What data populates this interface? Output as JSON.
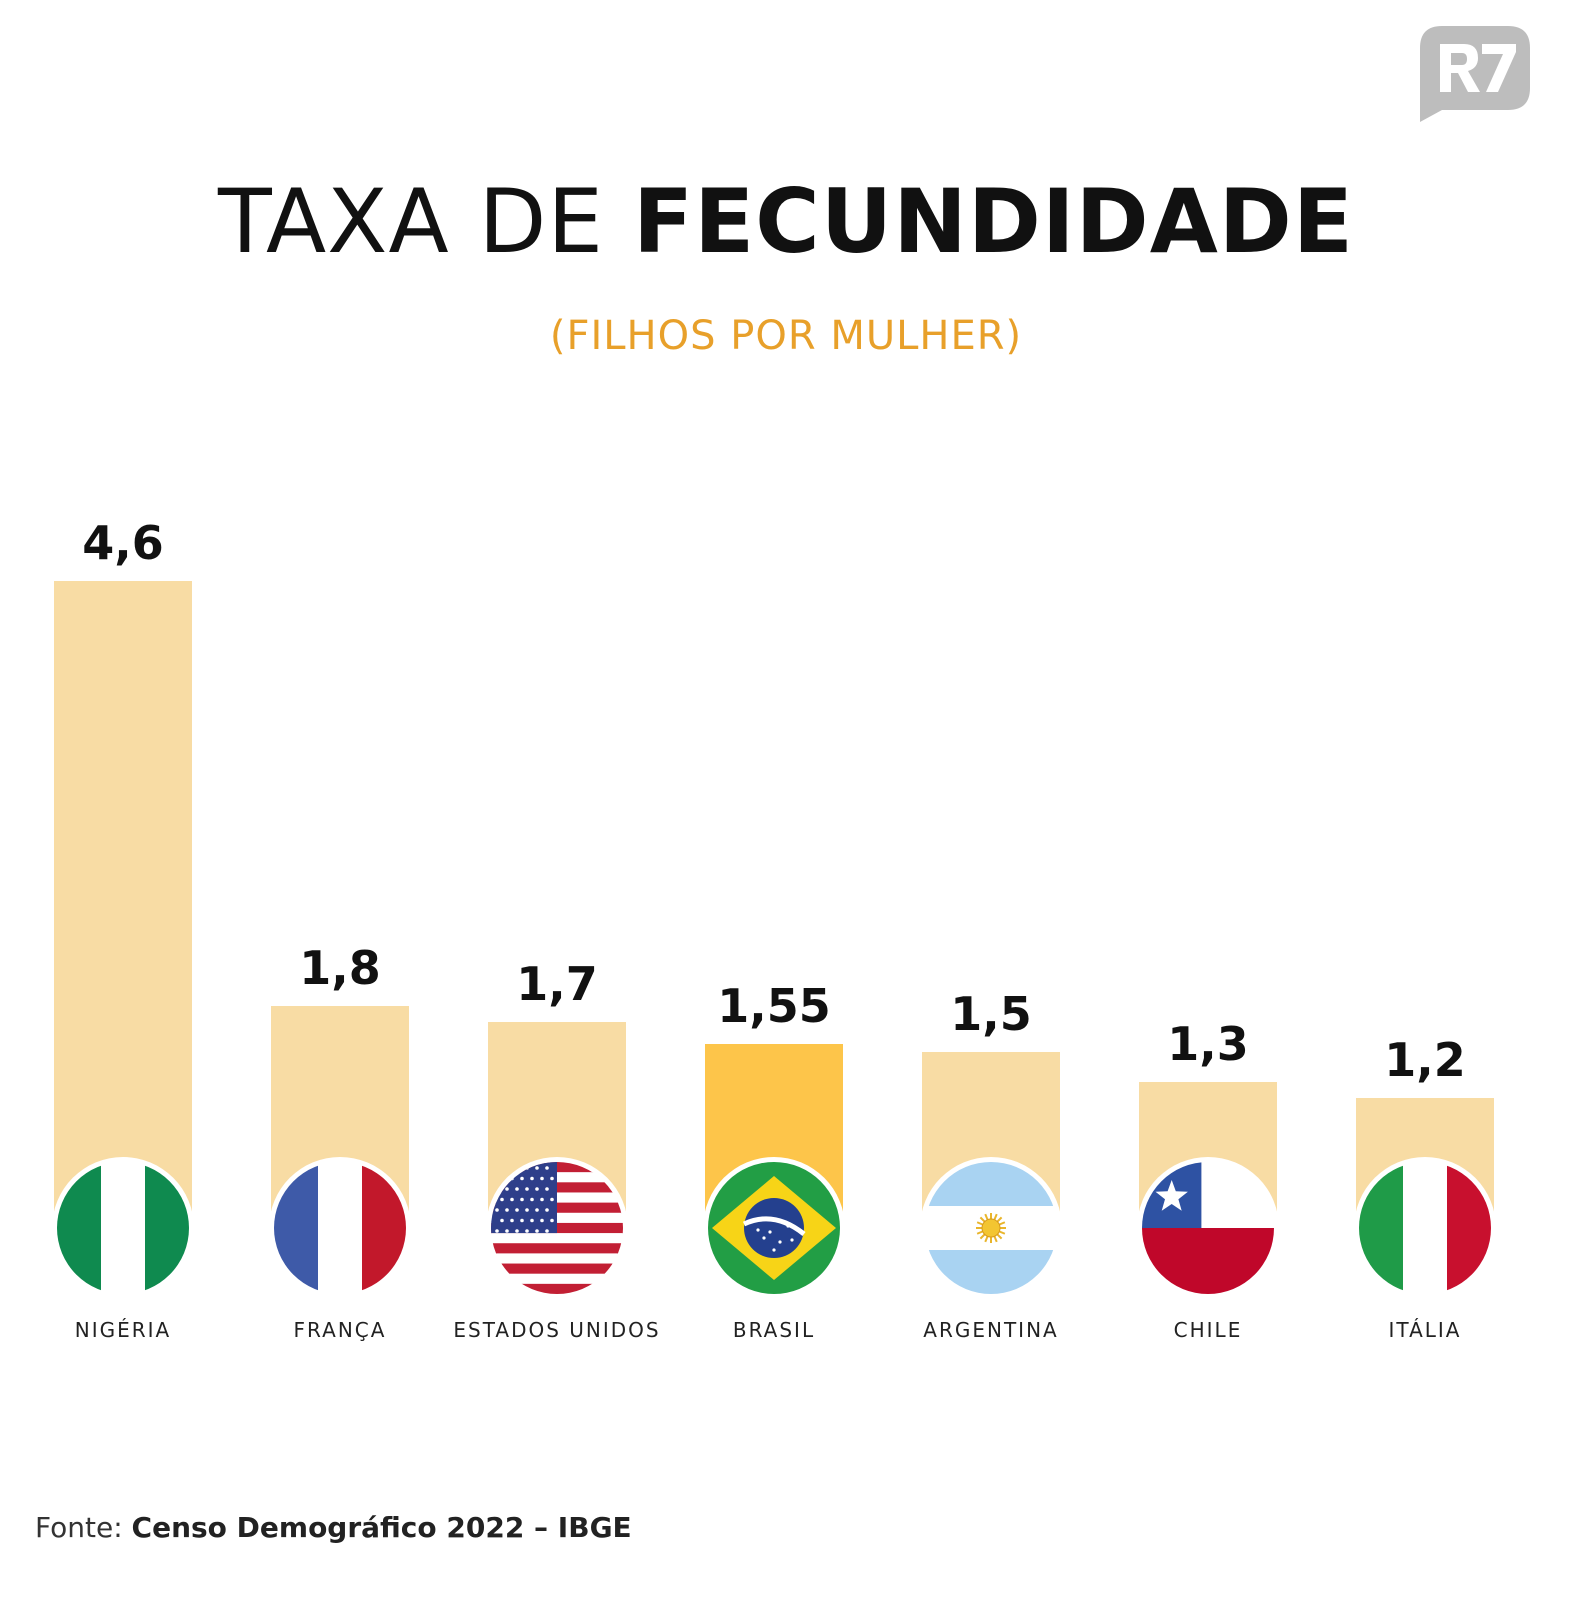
{
  "logo": {
    "text": "R7",
    "color": "#bdbdbd"
  },
  "header": {
    "title_light": "TAXA DE ",
    "title_bold": "FECUNDIDADE",
    "subtitle": "(FILHOS POR MULHER)"
  },
  "footer": {
    "source_label": "Fonte: ",
    "source_value": "Censo Demográfico 2022 – IBGE"
  },
  "colors": {
    "bar": "#f8dca4",
    "highlight": "#fdc54a",
    "subtitle": "#e8a02a",
    "label": "#222222"
  },
  "chart_data": {
    "type": "bar",
    "title": "TAXA DE FECUNDIDADE",
    "subtitle": "(FILHOS POR MULHER)",
    "categories": [
      "NIGÉRIA",
      "FRANÇA",
      "ESTADOS UNIDOS",
      "BRASIL",
      "ARGENTINA",
      "CHILE",
      "ITÁLIA"
    ],
    "values": [
      4.6,
      1.8,
      1.7,
      1.55,
      1.5,
      1.3,
      1.2
    ],
    "value_labels": [
      "4,6",
      "1,8",
      "1,7",
      "1,55",
      "1,5",
      "1,3",
      "1,2"
    ],
    "flags": [
      "nigeria-flag",
      "france-flag",
      "usa-flag",
      "brazil-flag",
      "argentina-flag",
      "chile-flag",
      "italy-flag"
    ],
    "highlight": "BRASIL",
    "grid": false,
    "legend": "none"
  }
}
